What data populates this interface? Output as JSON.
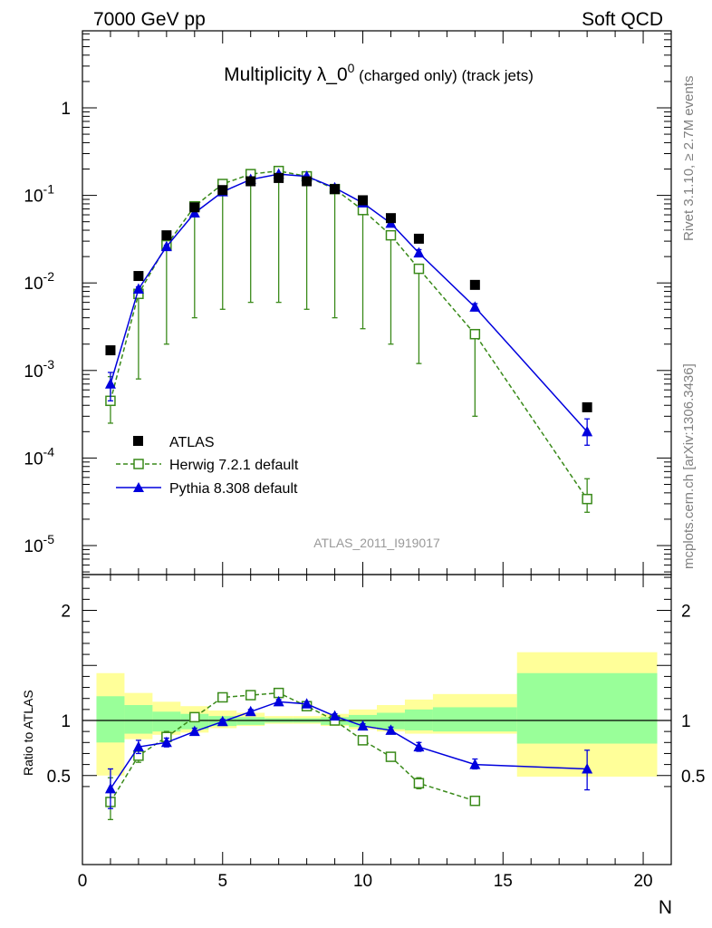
{
  "header": {
    "left": "7000 GeV pp",
    "right": "Soft QCD"
  },
  "title_main": "Multiplicity λ_0",
  "title_sup": "0",
  "title_tail": " (charged only) (track jets)",
  "side_text_top": "Rivet 3.1.10, ≥ 2.7M events",
  "side_text_bottom": "mcplots.cern.ch [arXiv:1306.3436]",
  "analysis_label": "ATLAS_2011_I919017",
  "colors": {
    "data": "#000000",
    "herwig": "#3a8a1a",
    "pythia": "#0000dd",
    "band_outer": "#ffff99",
    "band_inner": "#99ff99"
  },
  "chart_data": [
    {
      "type": "scatter",
      "panel": "main",
      "yscale": "log",
      "xlim": [
        0,
        21
      ],
      "ylim": [
        6e-06,
        5
      ],
      "y_tick_labels": [
        "1",
        "10",
        "10",
        "10",
        "10",
        "10"
      ],
      "y_tick_exponents": [
        "",
        "-1",
        "-2",
        "-3",
        "-4",
        "-5"
      ],
      "legend": {
        "placement": "bottom-left",
        "entries": [
          "ATLAS",
          "Herwig 7.2.1 default",
          "Pythia 8.308 default"
        ]
      },
      "series": [
        {
          "name": "ATLAS",
          "style": "square-filled",
          "x": [
            1,
            2,
            3,
            4,
            5,
            6,
            7,
            8,
            9,
            10,
            11,
            12,
            14,
            18
          ],
          "y": [
            0.0017,
            0.012,
            0.035,
            0.073,
            0.115,
            0.145,
            0.158,
            0.145,
            0.118,
            0.088,
            0.055,
            0.032,
            0.0095,
            0.00038
          ]
        },
        {
          "name": "Herwig 7.2.1 default",
          "style": "square-open-dashed",
          "x": [
            1,
            2,
            3,
            4,
            5,
            6,
            7,
            8,
            9,
            10,
            11,
            12,
            14,
            18
          ],
          "y": [
            0.00045,
            0.0075,
            0.027,
            0.075,
            0.135,
            0.175,
            0.19,
            0.165,
            0.118,
            0.068,
            0.035,
            0.0145,
            0.0026,
            3.4e-05
          ],
          "err_lo": [
            0.00025,
            0.0008,
            0.002,
            0.004,
            0.005,
            0.006,
            0.006,
            0.005,
            0.004,
            0.003,
            0.002,
            0.0012,
            0.0003,
            2.4e-05
          ],
          "err_hi": [
            0.00085,
            0.0085,
            0.029,
            0.079,
            0.14,
            0.18,
            0.195,
            0.17,
            0.122,
            0.071,
            0.037,
            0.016,
            0.0028,
            5.8e-05
          ]
        },
        {
          "name": "Pythia 8.308 default",
          "style": "triangle-solid",
          "x": [
            1,
            2,
            3,
            4,
            5,
            6,
            7,
            8,
            9,
            10,
            11,
            12,
            14,
            18
          ],
          "y": [
            0.0007,
            0.0085,
            0.026,
            0.063,
            0.11,
            0.152,
            0.175,
            0.165,
            0.122,
            0.082,
            0.048,
            0.022,
            0.0053,
            0.0002
          ],
          "err_lo": [
            0.00045,
            0.008,
            0.025,
            0.06,
            0.106,
            0.148,
            0.17,
            0.16,
            0.118,
            0.079,
            0.045,
            0.02,
            0.0048,
            0.00014
          ],
          "err_hi": [
            0.00095,
            0.009,
            0.027,
            0.066,
            0.114,
            0.156,
            0.18,
            0.17,
            0.126,
            0.085,
            0.051,
            0.024,
            0.0058,
            0.00028
          ]
        }
      ]
    },
    {
      "type": "scatter",
      "panel": "ratio",
      "ylabel": "Ratio to ATLAS",
      "xlabel": "N",
      "xlim": [
        0,
        21
      ],
      "ylim": [
        0.35,
        2.35
      ],
      "x_ticks": [
        0,
        5,
        10,
        15,
        20
      ],
      "y_ticks": [
        0.5,
        1,
        2
      ],
      "reference_line": 1,
      "bands": [
        {
          "x0": 0.5,
          "x1": 1.5,
          "inner_lo": 0.8,
          "inner_hi": 1.22,
          "outer_lo": 0.5,
          "outer_hi": 1.43
        },
        {
          "x0": 1.5,
          "x1": 2.5,
          "inner_lo": 0.88,
          "inner_hi": 1.14,
          "outer_lo": 0.83,
          "outer_hi": 1.25
        },
        {
          "x0": 2.5,
          "x1": 3.5,
          "inner_lo": 0.9,
          "inner_hi": 1.08,
          "outer_lo": 0.87,
          "outer_hi": 1.17
        },
        {
          "x0": 3.5,
          "x1": 4.5,
          "inner_lo": 0.92,
          "inner_hi": 1.06,
          "outer_lo": 0.89,
          "outer_hi": 1.13
        },
        {
          "x0": 4.5,
          "x1": 5.5,
          "inner_lo": 0.95,
          "inner_hi": 1.04,
          "outer_lo": 0.93,
          "outer_hi": 1.09
        },
        {
          "x0": 5.5,
          "x1": 6.5,
          "inner_lo": 0.96,
          "inner_hi": 1.03,
          "outer_lo": 0.95,
          "outer_hi": 1.07
        },
        {
          "x0": 6.5,
          "x1": 7.5,
          "inner_lo": 0.98,
          "inner_hi": 1.02,
          "outer_lo": 0.97,
          "outer_hi": 1.04
        },
        {
          "x0": 7.5,
          "x1": 8.5,
          "inner_lo": 0.98,
          "inner_hi": 1.02,
          "outer_lo": 0.97,
          "outer_hi": 1.04
        },
        {
          "x0": 8.5,
          "x1": 9.5,
          "inner_lo": 0.96,
          "inner_hi": 1.03,
          "outer_lo": 0.95,
          "outer_hi": 1.06
        },
        {
          "x0": 9.5,
          "x1": 10.5,
          "inner_lo": 0.94,
          "inner_hi": 1.05,
          "outer_lo": 0.92,
          "outer_hi": 1.1
        },
        {
          "x0": 10.5,
          "x1": 11.5,
          "inner_lo": 0.92,
          "inner_hi": 1.07,
          "outer_lo": 0.9,
          "outer_hi": 1.14
        },
        {
          "x0": 11.5,
          "x1": 12.5,
          "inner_lo": 0.91,
          "inner_hi": 1.1,
          "outer_lo": 0.88,
          "outer_hi": 1.19
        },
        {
          "x0": 12.5,
          "x1": 15.5,
          "inner_lo": 0.9,
          "inner_hi": 1.12,
          "outer_lo": 0.88,
          "outer_hi": 1.24
        },
        {
          "x0": 15.5,
          "x1": 20.5,
          "inner_lo": 0.79,
          "inner_hi": 1.43,
          "outer_lo": 0.49,
          "outer_hi": 1.62
        }
      ],
      "series": [
        {
          "name": "Herwig 7.2.1 default",
          "style": "square-open-dashed",
          "x": [
            1,
            2,
            3,
            4,
            5,
            6,
            7,
            8,
            9,
            10,
            11,
            12,
            14
          ],
          "y": [
            0.26,
            0.68,
            0.85,
            1.03,
            1.21,
            1.23,
            1.25,
            1.13,
            1.0,
            0.82,
            0.67,
            0.43,
            0.27
          ],
          "err_lo": [
            0.1,
            0.62,
            0.8,
            1.0,
            1.19,
            1.21,
            1.23,
            1.11,
            0.98,
            0.8,
            0.64,
            0.38,
            0.24
          ],
          "err_hi": [
            0.48,
            0.74,
            0.9,
            1.06,
            1.23,
            1.25,
            1.27,
            1.15,
            1.02,
            0.84,
            0.71,
            0.48,
            0.3
          ]
        },
        {
          "name": "Pythia 8.308 default",
          "style": "triangle-solid",
          "x": [
            1,
            2,
            3,
            4,
            5,
            6,
            7,
            8,
            9,
            10,
            11,
            12,
            14,
            18
          ],
          "y": [
            0.38,
            0.76,
            0.8,
            0.9,
            0.99,
            1.08,
            1.17,
            1.15,
            1.04,
            0.95,
            0.91,
            0.76,
            0.6,
            0.56
          ],
          "err_lo": [
            0.2,
            0.7,
            0.76,
            0.87,
            0.97,
            1.06,
            1.15,
            1.13,
            1.02,
            0.93,
            0.88,
            0.72,
            0.56,
            0.37
          ],
          "err_hi": [
            0.56,
            0.82,
            0.84,
            0.93,
            1.01,
            1.1,
            1.19,
            1.17,
            1.06,
            0.97,
            0.94,
            0.8,
            0.65,
            0.73
          ]
        }
      ]
    }
  ]
}
